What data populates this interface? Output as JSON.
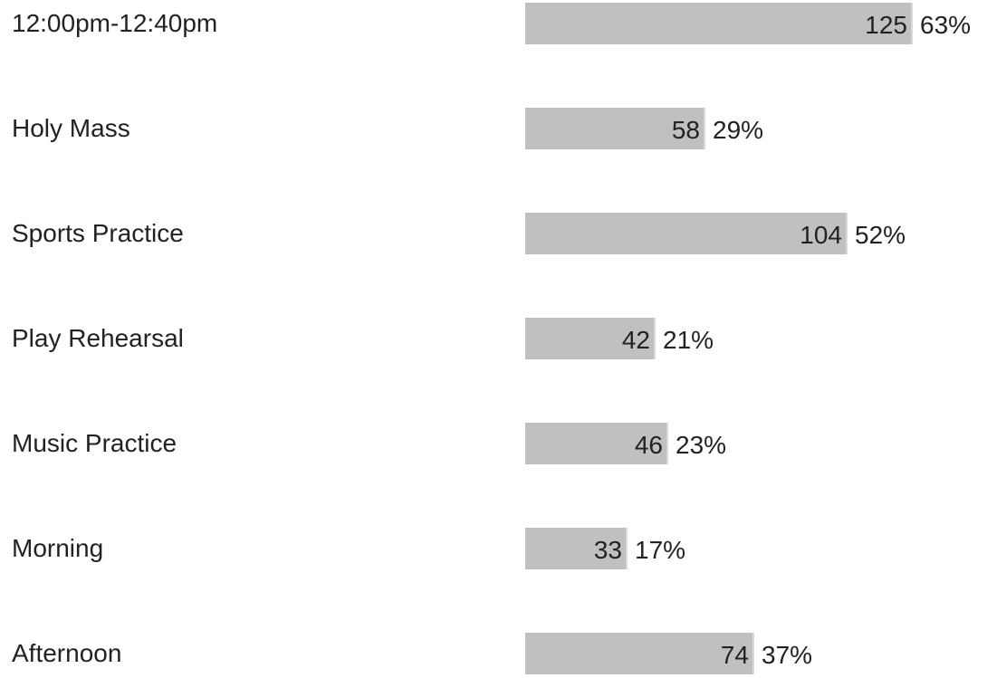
{
  "chart_data": {
    "type": "bar",
    "orientation": "horizontal",
    "categories": [
      "12:00pm-12:40pm",
      "Holy Mass",
      "Sports Practice",
      "Play Rehearsal",
      "Music Practice",
      "Morning",
      "Afternoon"
    ],
    "values": [
      125,
      58,
      104,
      42,
      46,
      33,
      74
    ],
    "percent_labels": [
      "63%",
      "29%",
      "52%",
      "21%",
      "23%",
      "17%",
      "37%"
    ],
    "colors": {
      "bar": "#c0c0c0",
      "bar_edge": "#d9d9d9",
      "text": "#222222"
    },
    "grid": false,
    "legend": "none"
  }
}
